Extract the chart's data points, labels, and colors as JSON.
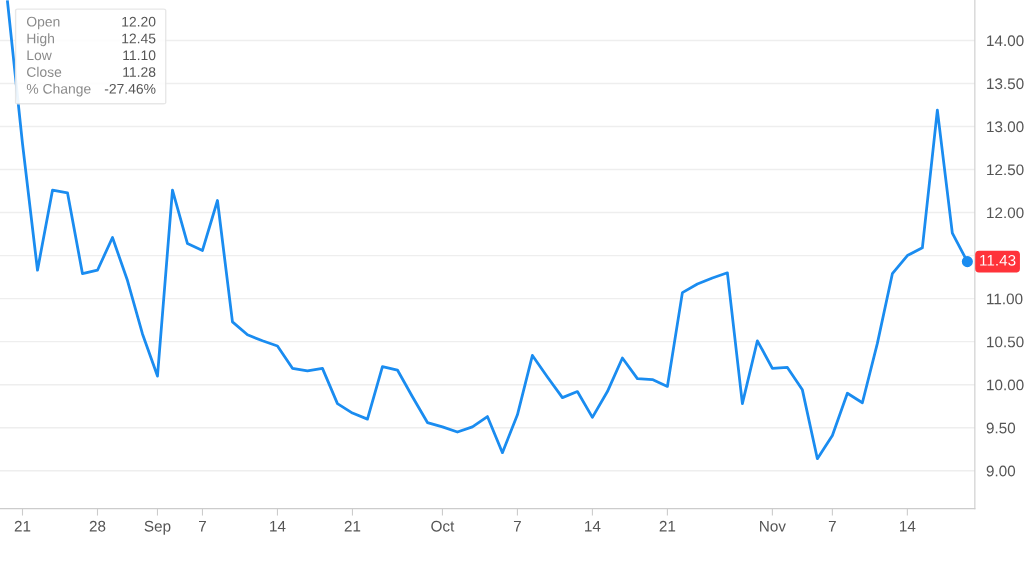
{
  "chart_data": {
    "type": "line",
    "categories": [
      null,
      "21",
      null,
      null,
      null,
      null,
      "28",
      null,
      null,
      null,
      "Sep",
      null,
      null,
      "7",
      null,
      null,
      null,
      null,
      "14",
      null,
      null,
      null,
      null,
      "21",
      null,
      null,
      null,
      null,
      null,
      "Oct",
      null,
      null,
      null,
      null,
      "7",
      null,
      null,
      null,
      null,
      "14",
      null,
      null,
      null,
      null,
      "21",
      null,
      null,
      null,
      null,
      null,
      null,
      "Nov",
      null,
      null,
      null,
      "7",
      null,
      null,
      null,
      null,
      "14",
      null,
      null,
      null,
      null
    ],
    "series": [
      {
        "color": "#1a8cf0",
        "values": [
          14.45,
          12.8,
          11.33,
          12.26,
          12.23,
          11.29,
          11.33,
          11.71,
          11.21,
          10.59,
          10.1,
          12.26,
          11.64,
          11.56,
          12.14,
          10.73,
          10.58,
          10.51,
          10.45,
          10.19,
          10.16,
          10.19,
          9.78,
          9.67,
          9.6,
          10.21,
          10.17,
          9.86,
          9.56,
          9.51,
          9.45,
          9.51,
          9.63,
          9.21,
          9.65,
          10.34,
          10.09,
          9.85,
          9.92,
          9.62,
          9.92,
          10.31,
          10.07,
          10.06,
          9.98,
          11.07,
          11.17,
          11.24,
          11.3,
          9.78,
          10.51,
          10.19,
          10.2,
          9.94,
          9.14,
          9.41,
          9.9,
          9.79,
          10.48,
          11.29,
          11.5,
          11.59,
          13.19,
          11.76,
          11.43
        ]
      }
    ],
    "ylim": [
      8.56,
      14.47
    ],
    "yticks": [
      {
        "value": 9,
        "label": "9.00"
      },
      {
        "value": 9.5,
        "label": "9.50"
      },
      {
        "value": 10,
        "label": "10.00"
      },
      {
        "value": 10.5,
        "label": "10.50"
      },
      {
        "value": 11,
        "label": "11.00"
      },
      {
        "value": 11.5,
        "label": null
      },
      {
        "value": 12,
        "label": "12.00"
      },
      {
        "value": 12.5,
        "label": "12.50"
      },
      {
        "value": 13,
        "label": "13.00"
      },
      {
        "value": 13.5,
        "label": "13.50"
      },
      {
        "value": 14,
        "label": "14.00"
      }
    ],
    "annotations": [
      "Open 12.20",
      "High 12.45",
      "Low 11.10",
      "Close 11.28",
      "% Change -27.46%",
      "11.43"
    ],
    "grid": "y",
    "marker": "none",
    "line_style": "solid"
  }
}
